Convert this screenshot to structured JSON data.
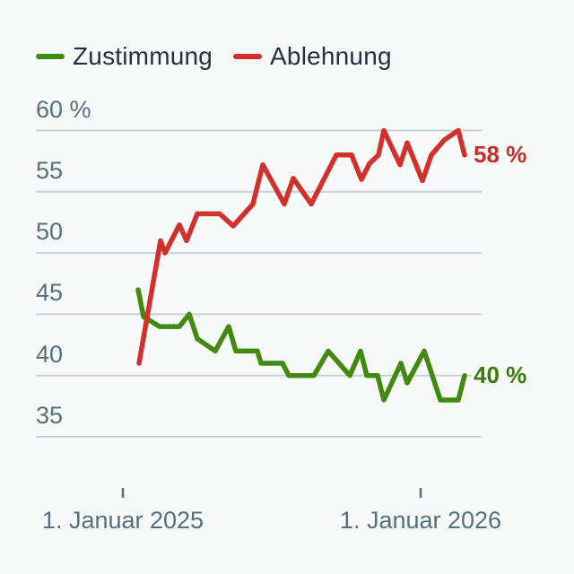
{
  "page": {
    "background": "#f7f8f8"
  },
  "legend": {
    "items": [
      {
        "label": "Zustimmung",
        "color": "#418a0f"
      },
      {
        "label": "Ablehnung",
        "color": "#d2302a"
      }
    ]
  },
  "y_axis": {
    "unit": "%",
    "labels": [
      {
        "text": "60 %",
        "value": 60
      },
      {
        "text": "55",
        "value": 55
      },
      {
        "text": "50",
        "value": 50
      },
      {
        "text": "45",
        "value": 45
      },
      {
        "text": "40",
        "value": 40
      },
      {
        "text": "35",
        "value": 35
      }
    ]
  },
  "x_axis": {
    "labels": [
      {
        "text": "1. Januar 2025"
      },
      {
        "text": "1. Januar 2026"
      }
    ]
  },
  "colors": {
    "grid": "#c7d1d8",
    "axis_text": "#54707f",
    "legend_text": "#29313b",
    "tick": "#54707f"
  },
  "chart_data": {
    "type": "line",
    "title": "",
    "xlabel": "",
    "ylabel": "%",
    "ylim": [
      35,
      60
    ],
    "grid": "horizontal",
    "legend_position": "top-left",
    "x_ticks": [
      "1. Januar 2025",
      "1. Januar 2026"
    ],
    "x_unit": "px",
    "y_unit": "percent",
    "series": [
      {
        "name": "Zustimmung",
        "color": "#418a0f",
        "label_color": "#3a7d0d",
        "end_label": "40 %",
        "points": [
          [
            154,
            47
          ],
          [
            160,
            44.8
          ],
          [
            178,
            44
          ],
          [
            200,
            44
          ],
          [
            211,
            45
          ],
          [
            220,
            43
          ],
          [
            240,
            42
          ],
          [
            255,
            44
          ],
          [
            263,
            42
          ],
          [
            287,
            42
          ],
          [
            291,
            41
          ],
          [
            315,
            41
          ],
          [
            322,
            40
          ],
          [
            350,
            40
          ],
          [
            366,
            42
          ],
          [
            390,
            40
          ],
          [
            402,
            42
          ],
          [
            409,
            40
          ],
          [
            421,
            40
          ],
          [
            428,
            38
          ],
          [
            447,
            41
          ],
          [
            454,
            39.4
          ],
          [
            473,
            42
          ],
          [
            491,
            38
          ],
          [
            511,
            38
          ],
          [
            518,
            40
          ]
        ]
      },
      {
        "name": "Ablehnung",
        "color": "#d2302a",
        "label_color": "#c62f29",
        "end_label": "58 %",
        "points": [
          [
            155,
            41
          ],
          [
            179,
            51
          ],
          [
            184,
            50
          ],
          [
            200,
            52.3
          ],
          [
            208,
            51
          ],
          [
            220,
            53.2
          ],
          [
            245,
            53.2
          ],
          [
            260,
            52.2
          ],
          [
            282,
            54
          ],
          [
            293,
            57.2
          ],
          [
            317,
            54
          ],
          [
            327,
            56.1
          ],
          [
            347,
            54
          ],
          [
            375,
            58
          ],
          [
            392,
            58
          ],
          [
            403,
            56
          ],
          [
            412,
            57.3
          ],
          [
            422,
            58
          ],
          [
            428,
            60
          ],
          [
            446,
            57.2
          ],
          [
            454,
            59
          ],
          [
            471,
            55.9
          ],
          [
            481,
            58
          ],
          [
            495,
            59.2
          ],
          [
            511,
            60
          ],
          [
            518,
            58
          ]
        ]
      }
    ]
  }
}
